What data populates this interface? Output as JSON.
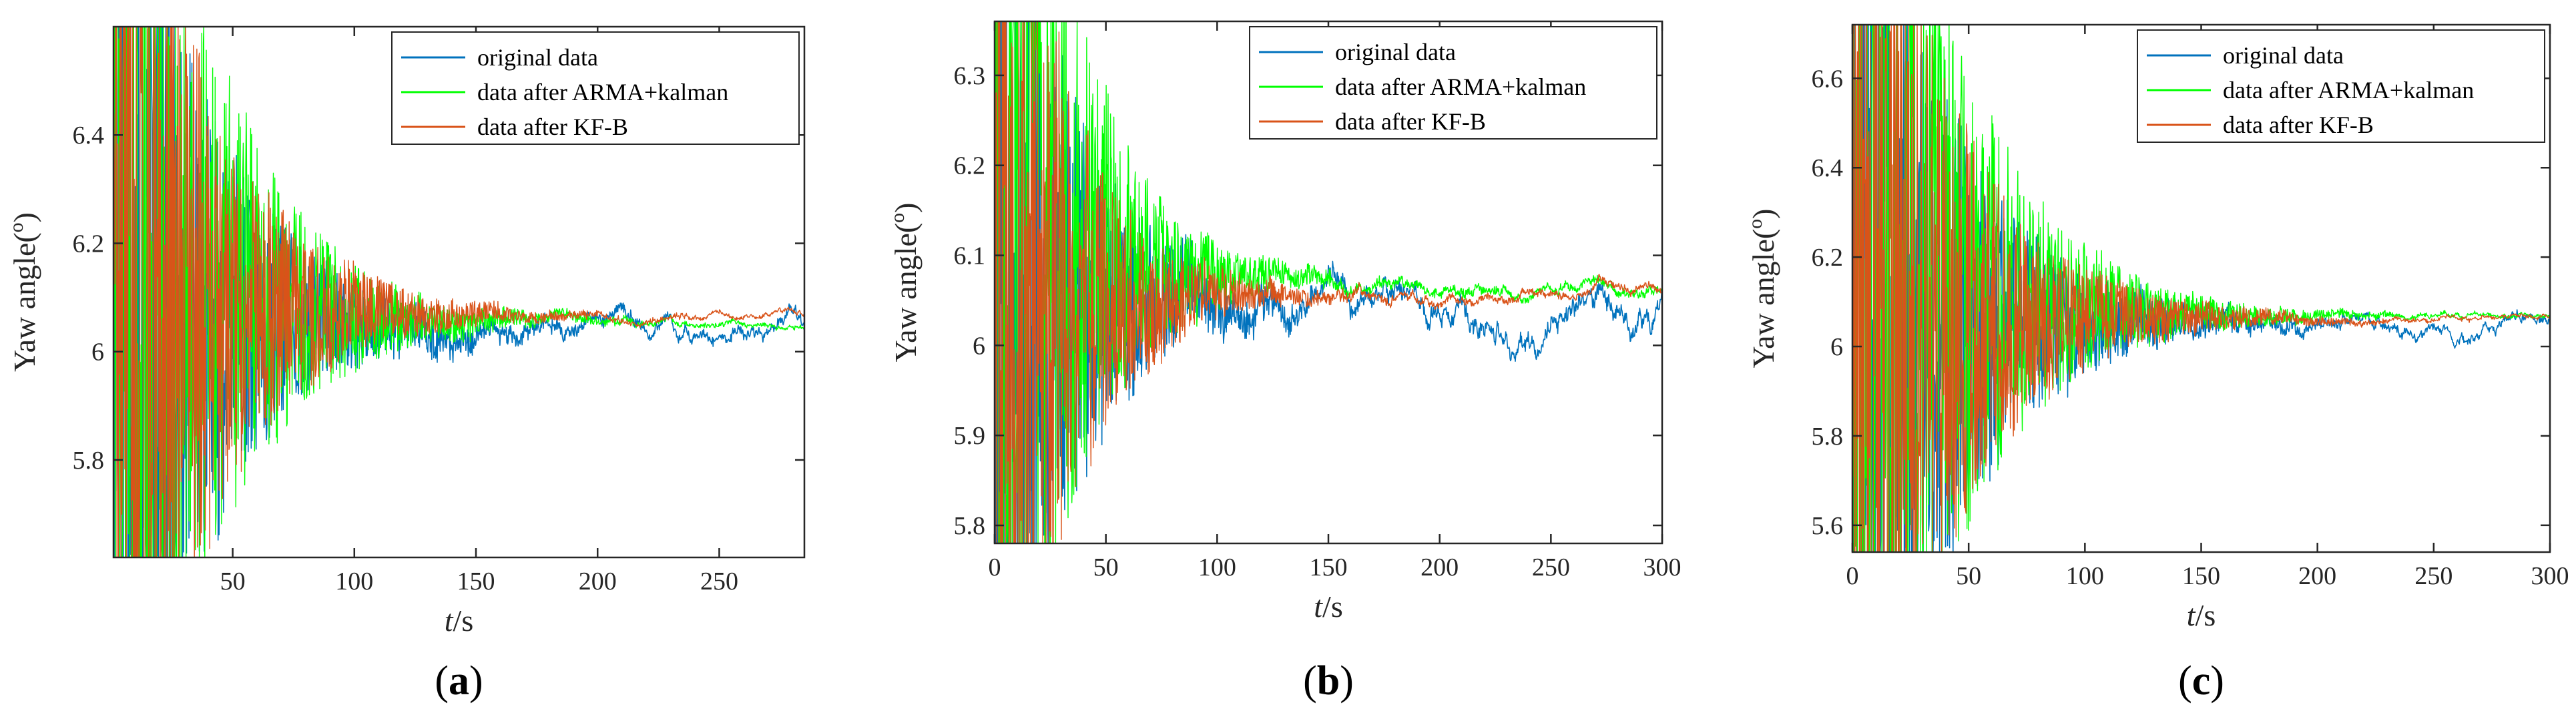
{
  "colors": {
    "original": "#0072BD",
    "arma": "#00FF00",
    "kfb": "#D95319",
    "axis": "#262626"
  },
  "chart_data": [
    {
      "type": "line",
      "panel_label": "(a)",
      "panel_letter": "a",
      "xlabel_italic": "t",
      "xlabel_unit": "/s",
      "ylabel": "Yaw angle(",
      "ylabel_sup": "o",
      "ylabel_close": ")",
      "xlim": [
        1,
        285
      ],
      "ylim": [
        5.62,
        6.6
      ],
      "xticks": [
        50,
        100,
        150,
        200,
        250
      ],
      "yticks": [
        5.8,
        6,
        6.2,
        6.4
      ],
      "grid": false,
      "legend_position": "top-right",
      "series": [
        {
          "name": "original data",
          "final": 6.035,
          "offset_end": -0.006,
          "noise": 0.012
        },
        {
          "name": "data after ARMA+kalman",
          "final": 6.05,
          "offset_end": 0.0,
          "noise": 0.006
        },
        {
          "name": "data after KF-B",
          "final": 6.068,
          "offset_end": 0.0,
          "noise": 0.005
        }
      ],
      "converge_time": 130
    },
    {
      "type": "line",
      "panel_label": "(b)",
      "panel_letter": "b",
      "xlabel_italic": "t",
      "xlabel_unit": "/s",
      "ylabel": "Yaw angle(",
      "ylabel_sup": "o",
      "ylabel_close": ")",
      "xlim": [
        0,
        300
      ],
      "ylim": [
        5.78,
        6.36
      ],
      "xticks": [
        0,
        50,
        100,
        150,
        200,
        250,
        300
      ],
      "yticks": [
        5.8,
        5.9,
        6,
        6.1,
        6.2,
        6.3
      ],
      "grid": false,
      "legend_position": "top-right",
      "series": [
        {
          "name": "original data",
          "final": 6.04,
          "offset_end": -0.005,
          "noise": 0.012
        },
        {
          "name": "data after ARMA+kalman",
          "final": 6.058,
          "offset_end": 0.0,
          "noise": 0.008
        },
        {
          "name": "data after KF-B",
          "final": 6.058,
          "offset_end": 0.0,
          "noise": 0.006
        }
      ],
      "converge_time": 110
    },
    {
      "type": "line",
      "panel_label": "(c)",
      "panel_letter": "c",
      "xlabel_italic": "t",
      "xlabel_unit": "/s",
      "ylabel": "Yaw angle(",
      "ylabel_sup": "o",
      "ylabel_close": ")",
      "xlim": [
        0,
        300
      ],
      "ylim": [
        5.54,
        6.72
      ],
      "xticks": [
        0,
        50,
        100,
        150,
        200,
        250,
        300
      ],
      "yticks": [
        5.6,
        5.8,
        6,
        6.2,
        6.4,
        6.6
      ],
      "grid": false,
      "legend_position": "top-right",
      "series": [
        {
          "name": "original data",
          "final": 6.045,
          "offset_end": -0.005,
          "noise": 0.01
        },
        {
          "name": "data after ARMA+kalman",
          "final": 6.065,
          "offset_end": 0.0,
          "noise": 0.006
        },
        {
          "name": "data after KF-B",
          "final": 6.062,
          "offset_end": 0.0,
          "noise": 0.005
        }
      ],
      "converge_time": 140
    }
  ]
}
